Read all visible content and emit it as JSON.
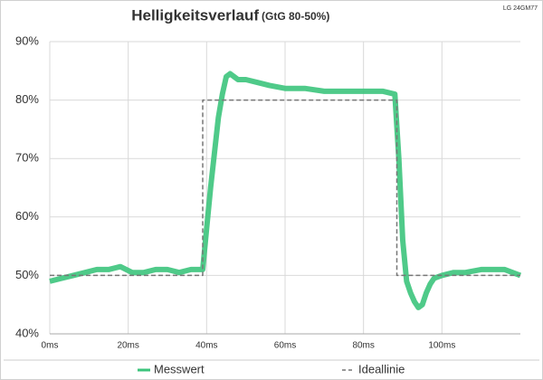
{
  "chart_data": {
    "type": "line",
    "title": "Helligkeitsverlauf",
    "subtitle": "(GtG 80-50%)",
    "annotation": "LG 24GM77",
    "xlim": [
      0,
      120
    ],
    "xticks": [
      {
        "value": 0,
        "label": "0ms"
      },
      {
        "value": 20,
        "label": "20ms"
      },
      {
        "value": 40,
        "label": "40ms"
      },
      {
        "value": 60,
        "label": "60ms"
      },
      {
        "value": 80,
        "label": "80ms"
      },
      {
        "value": 100,
        "label": "100ms"
      }
    ],
    "ylim": [
      40,
      90
    ],
    "yticks": [
      {
        "value": 40,
        "label": "40%"
      },
      {
        "value": 50,
        "label": "50%"
      },
      {
        "value": 60,
        "label": "60%"
      },
      {
        "value": 70,
        "label": "70%"
      },
      {
        "value": 80,
        "label": "80%"
      },
      {
        "value": 90,
        "label": "90%"
      }
    ],
    "grid": true,
    "legend": "bottom",
    "series": [
      {
        "name": "Messwert",
        "color": "#3cc47c",
        "style": "solid",
        "x": [
          0,
          3,
          6,
          9,
          12,
          15,
          18,
          21,
          24,
          27,
          30,
          33,
          36,
          39,
          40,
          41,
          42,
          43,
          44,
          45,
          46,
          47,
          48,
          50,
          53,
          56,
          60,
          65,
          70,
          75,
          80,
          85,
          88,
          89,
          90,
          91,
          92,
          93,
          94,
          95,
          96,
          97,
          98,
          100,
          103,
          106,
          110,
          113,
          116,
          120
        ],
        "values": [
          49,
          49.5,
          50,
          50.5,
          51,
          51,
          51.5,
          50.5,
          50.5,
          51,
          51,
          50.5,
          51,
          51,
          58,
          65,
          71,
          77,
          81,
          84,
          84.5,
          84,
          83.5,
          83.5,
          83,
          82.5,
          82,
          82,
          81.5,
          81.5,
          81.5,
          81.5,
          81,
          70,
          56,
          49,
          47,
          45.5,
          44.5,
          45,
          47,
          48.5,
          49.5,
          50,
          50.5,
          50.5,
          51,
          51,
          51,
          50
        ]
      },
      {
        "name": "Ideallinie",
        "color": "#777777",
        "style": "dashed",
        "x": [
          0,
          39,
          39,
          88.5,
          88.5,
          120
        ],
        "values": [
          50,
          50,
          80,
          80,
          50,
          50
        ]
      }
    ]
  }
}
